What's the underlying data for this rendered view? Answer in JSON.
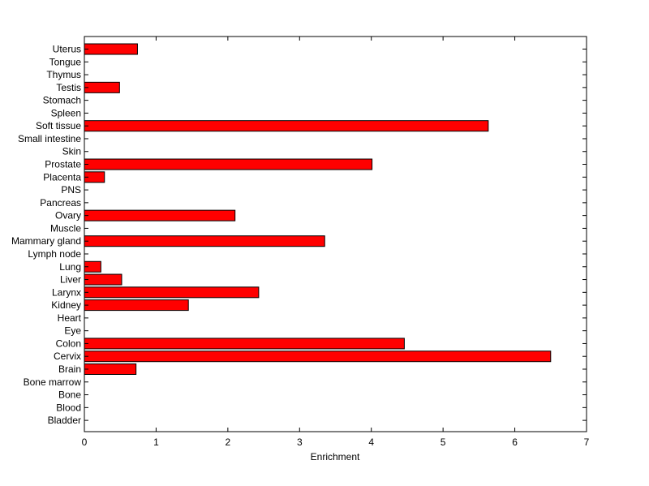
{
  "chart_data": {
    "type": "bar",
    "orientation": "horizontal",
    "xlabel": "Enrichment",
    "ylabel": "",
    "title": "",
    "xlim": [
      0,
      7
    ],
    "xticks": [
      "0",
      "1",
      "2",
      "3",
      "4",
      "5",
      "6",
      "7"
    ],
    "grid": false,
    "bar_color": "#ff0000",
    "bar_edge_color": "#000000",
    "categories": [
      "Uterus",
      "Tongue",
      "Thymus",
      "Testis",
      "Stomach",
      "Spleen",
      "Soft tissue",
      "Small intestine",
      "Skin",
      "Prostate",
      "Placenta",
      "PNS",
      "Pancreas",
      "Ovary",
      "Muscle",
      "Mammary gland",
      "Lymph node",
      "Lung",
      "Liver",
      "Larynx",
      "Kidney",
      "Heart",
      "Eye",
      "Colon",
      "Cervix",
      "Brain",
      "Bone marrow",
      "Bone",
      "Blood",
      "Bladder"
    ],
    "values": [
      0.74,
      0,
      0,
      0.49,
      0,
      0,
      5.63,
      0,
      0,
      4.01,
      0.28,
      0,
      0,
      2.1,
      0,
      3.35,
      0,
      0.23,
      0.52,
      2.43,
      1.45,
      0,
      0,
      4.46,
      6.5,
      0.72,
      0,
      0,
      0,
      0
    ]
  }
}
